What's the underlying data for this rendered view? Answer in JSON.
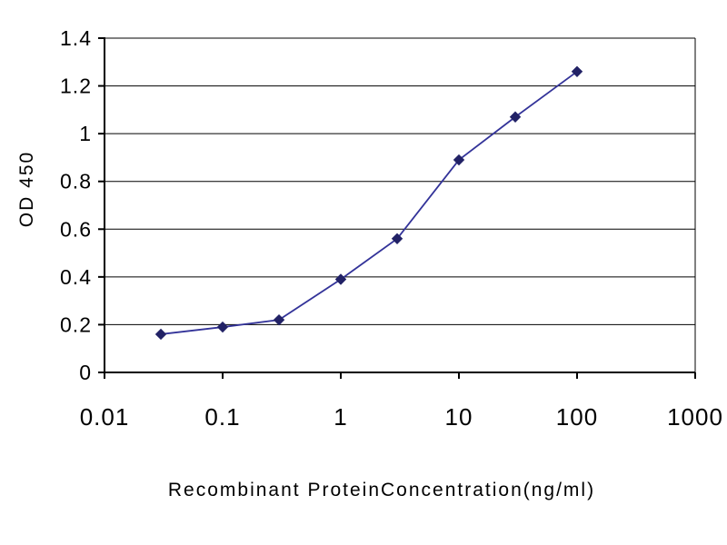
{
  "chart_data": {
    "type": "line",
    "title": "",
    "xlabel": "Recombinant ProteinConcentration(ng/ml)",
    "ylabel": "OD 450",
    "x_scale": "log",
    "xlim": [
      0.01,
      1000
    ],
    "ylim": [
      0,
      1.4
    ],
    "x_tick_values": [
      0.01,
      0.1,
      1,
      10,
      100,
      1000
    ],
    "x_tick_labels": [
      "0.01",
      "0.1",
      "1",
      "10",
      "100",
      "1000"
    ],
    "y_tick_values": [
      0,
      0.2,
      0.4,
      0.6,
      0.8,
      1,
      1.2,
      1.4
    ],
    "y_tick_labels": [
      "0",
      "0.2",
      "0.4",
      "0.6",
      "0.8",
      "1",
      "1.2",
      "1.4"
    ],
    "grid": "horizontal",
    "legend_position": "none",
    "x": [
      0.03,
      0.1,
      0.3,
      1,
      3,
      10,
      30,
      100
    ],
    "series": [
      {
        "name": "OD 450",
        "values": [
          0.16,
          0.19,
          0.22,
          0.39,
          0.56,
          0.89,
          1.07,
          1.26
        ],
        "color": "#333399",
        "marker": "diamond"
      }
    ],
    "colors": {
      "line": "#333399",
      "marker": "#222266",
      "grid": "#000000",
      "axis": "#000000",
      "background": "#ffffff"
    }
  }
}
